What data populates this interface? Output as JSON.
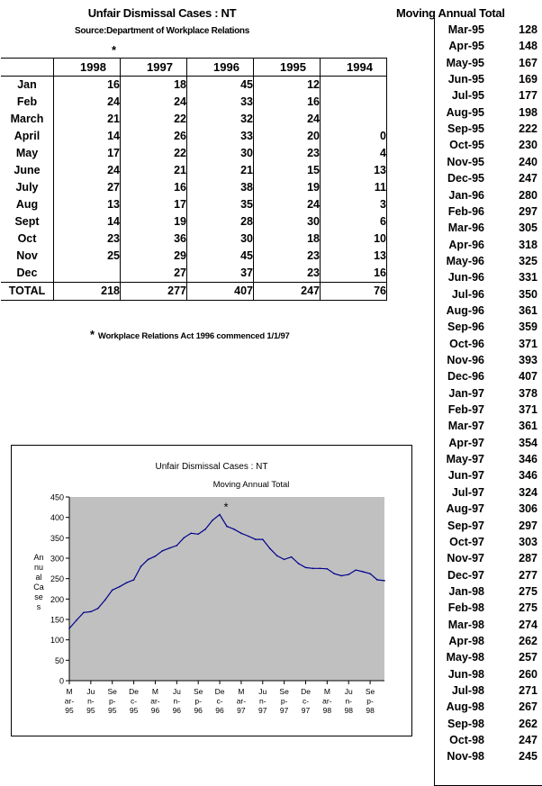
{
  "title": "Unfair Dismissal Cases : NT",
  "source": "Source:Department of Workplace Relations",
  "star": "*",
  "footnote": "Workplace Relations Act 1996 commenced 1/1/97",
  "table": {
    "years": [
      "1998",
      "1997",
      "1996",
      "1995",
      "1994"
    ],
    "rows": [
      {
        "month": "Jan",
        "values": [
          "16",
          "18",
          "45",
          "12",
          ""
        ]
      },
      {
        "month": "Feb",
        "values": [
          "24",
          "24",
          "33",
          "16",
          ""
        ]
      },
      {
        "month": "March",
        "values": [
          "21",
          "22",
          "32",
          "24",
          ""
        ]
      },
      {
        "month": "April",
        "values": [
          "14",
          "26",
          "33",
          "20",
          "0"
        ]
      },
      {
        "month": "May",
        "values": [
          "17",
          "22",
          "30",
          "23",
          "4"
        ]
      },
      {
        "month": "June",
        "values": [
          "24",
          "21",
          "21",
          "15",
          "13"
        ]
      },
      {
        "month": "July",
        "values": [
          "27",
          "16",
          "38",
          "19",
          "11"
        ]
      },
      {
        "month": "Aug",
        "values": [
          "13",
          "17",
          "35",
          "24",
          "3"
        ]
      },
      {
        "month": "Sept",
        "values": [
          "14",
          "19",
          "28",
          "30",
          "6"
        ]
      },
      {
        "month": "Oct",
        "values": [
          "23",
          "36",
          "30",
          "18",
          "10"
        ]
      },
      {
        "month": "Nov",
        "values": [
          "25",
          "29",
          "45",
          "23",
          "13"
        ]
      },
      {
        "month": "Dec",
        "values": [
          "",
          "27",
          "37",
          "23",
          "16"
        ]
      }
    ],
    "total_label": "TOTAL",
    "totals": [
      "218",
      "277",
      "407",
      "247",
      "76"
    ]
  },
  "mat": {
    "title": "Moving Annual Total",
    "rows": [
      {
        "label": "Mar-95",
        "value": "128"
      },
      {
        "label": "Apr-95",
        "value": "148"
      },
      {
        "label": "May-95",
        "value": "167"
      },
      {
        "label": "Jun-95",
        "value": "169"
      },
      {
        "label": "Jul-95",
        "value": "177"
      },
      {
        "label": "Aug-95",
        "value": "198"
      },
      {
        "label": "Sep-95",
        "value": "222"
      },
      {
        "label": "Oct-95",
        "value": "230"
      },
      {
        "label": "Nov-95",
        "value": "240"
      },
      {
        "label": "Dec-95",
        "value": "247"
      },
      {
        "label": "Jan-96",
        "value": "280"
      },
      {
        "label": "Feb-96",
        "value": "297"
      },
      {
        "label": "Mar-96",
        "value": "305"
      },
      {
        "label": "Apr-96",
        "value": "318"
      },
      {
        "label": "May-96",
        "value": "325"
      },
      {
        "label": "Jun-96",
        "value": "331"
      },
      {
        "label": "Jul-96",
        "value": "350"
      },
      {
        "label": "Aug-96",
        "value": "361"
      },
      {
        "label": "Sep-96",
        "value": "359"
      },
      {
        "label": "Oct-96",
        "value": "371"
      },
      {
        "label": "Nov-96",
        "value": "393"
      },
      {
        "label": "Dec-96",
        "value": "407"
      },
      {
        "label": "Jan-97",
        "value": "378"
      },
      {
        "label": "Feb-97",
        "value": "371"
      },
      {
        "label": "Mar-97",
        "value": "361"
      },
      {
        "label": "Apr-97",
        "value": "354"
      },
      {
        "label": "May-97",
        "value": "346"
      },
      {
        "label": "Jun-97",
        "value": "346"
      },
      {
        "label": "Jul-97",
        "value": "324"
      },
      {
        "label": "Aug-97",
        "value": "306"
      },
      {
        "label": "Sep-97",
        "value": "297"
      },
      {
        "label": "Oct-97",
        "value": "303"
      },
      {
        "label": "Nov-97",
        "value": "287"
      },
      {
        "label": "Dec-97",
        "value": "277"
      },
      {
        "label": "Jan-98",
        "value": "275"
      },
      {
        "label": "Feb-98",
        "value": "275"
      },
      {
        "label": "Mar-98",
        "value": "274"
      },
      {
        "label": "Apr-98",
        "value": "262"
      },
      {
        "label": "May-98",
        "value": "257"
      },
      {
        "label": "Jun-98",
        "value": "260"
      },
      {
        "label": "Jul-98",
        "value": "271"
      },
      {
        "label": "Aug-98",
        "value": "267"
      },
      {
        "label": "Sep-98",
        "value": "262"
      },
      {
        "label": "Oct-98",
        "value": "247"
      },
      {
        "label": "Nov-98",
        "value": "245"
      }
    ]
  },
  "chart_data": {
    "type": "line",
    "title": "Unfair Dismissal Cases : NT",
    "subtitle": "Moving Annual Total",
    "ylabel_lines": [
      "An",
      "nu",
      "al",
      "Ca",
      "se",
      "s"
    ],
    "ylim": [
      0,
      450
    ],
    "yticks": [
      0,
      50,
      100,
      150,
      200,
      250,
      300,
      350,
      400,
      450
    ],
    "xtick_labels": [
      [
        "M",
        "ar-",
        "95"
      ],
      [
        "Ju",
        "n-",
        "95"
      ],
      [
        "Se",
        "p-",
        "95"
      ],
      [
        "De",
        "c-",
        "95"
      ],
      [
        "M",
        "ar-",
        "96"
      ],
      [
        "Ju",
        "n-",
        "96"
      ],
      [
        "Se",
        "p-",
        "96"
      ],
      [
        "De",
        "c-",
        "96"
      ],
      [
        "M",
        "ar-",
        "97"
      ],
      [
        "Ju",
        "n-",
        "97"
      ],
      [
        "Se",
        "p-",
        "97"
      ],
      [
        "De",
        "c-",
        "97"
      ],
      [
        "M",
        "ar-",
        "98"
      ],
      [
        "Ju",
        "n-",
        "98"
      ],
      [
        "Se",
        "p-",
        "98"
      ]
    ],
    "annotation": "*",
    "annotation_index": 21,
    "plot_color": "#c0c0c0",
    "line_color": "#00008b",
    "grid": false,
    "legend": "none",
    "series": [
      {
        "x": [
          "Mar-95",
          "Apr-95",
          "May-95",
          "Jun-95",
          "Jul-95",
          "Aug-95",
          "Sep-95",
          "Oct-95",
          "Nov-95",
          "Dec-95",
          "Jan-96",
          "Feb-96",
          "Mar-96",
          "Apr-96",
          "May-96",
          "Jun-96",
          "Jul-96",
          "Aug-96",
          "Sep-96",
          "Oct-96",
          "Nov-96",
          "Dec-96",
          "Jan-97",
          "Feb-97",
          "Mar-97",
          "Apr-97",
          "May-97",
          "Jun-97",
          "Jul-97",
          "Aug-97",
          "Sep-97",
          "Oct-97",
          "Nov-97",
          "Dec-97",
          "Jan-98",
          "Feb-98",
          "Mar-98",
          "Apr-98",
          "May-98",
          "Jun-98",
          "Jul-98",
          "Aug-98",
          "Sep-98",
          "Oct-98",
          "Nov-98"
        ],
        "values": [
          128,
          148,
          167,
          169,
          177,
          198,
          222,
          230,
          240,
          247,
          280,
          297,
          305,
          318,
          325,
          331,
          350,
          361,
          359,
          371,
          393,
          407,
          378,
          371,
          361,
          354,
          346,
          346,
          324,
          306,
          297,
          303,
          287,
          277,
          275,
          275,
          274,
          262,
          257,
          260,
          271,
          267,
          262,
          247,
          245
        ]
      }
    ]
  }
}
